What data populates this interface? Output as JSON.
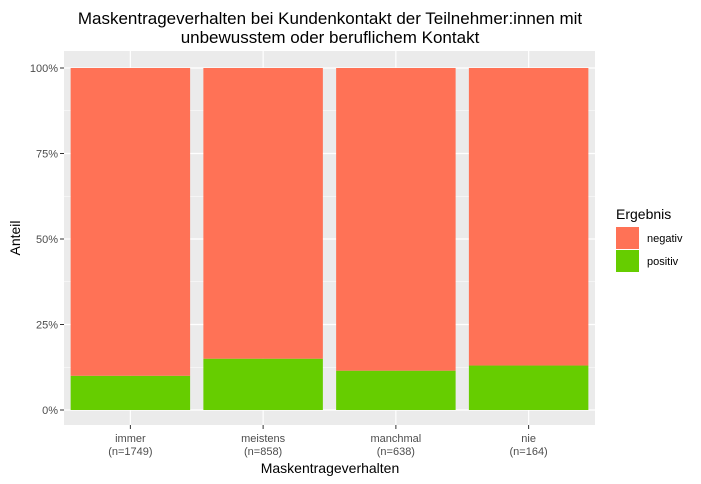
{
  "chart_data": {
    "type": "bar",
    "stacked": true,
    "title_lines": [
      "Maskentrageverhalten bei Kundenkontakt der Teilnehmer:innen mit",
      "unbewusstem oder beruflichem Kontakt"
    ],
    "xlabel": "Maskentrageverhalten",
    "ylabel": "Anteil",
    "categories": [
      "immer",
      "meistens",
      "manchmal",
      "nie"
    ],
    "category_counts": [
      "(n=1749)",
      "(n=858)",
      "(n=638)",
      "(n=164)"
    ],
    "ylim": [
      0,
      1
    ],
    "yticks": [
      0,
      0.25,
      0.5,
      0.75,
      1
    ],
    "ytick_labels": [
      "0%",
      "25%",
      "50%",
      "75%",
      "100%"
    ],
    "legend": {
      "title": "Ergebnis",
      "position": "right",
      "entries": [
        "negativ",
        "positiv"
      ]
    },
    "series": [
      {
        "name": "positiv",
        "color": "#66CD00",
        "values": [
          0.1,
          0.15,
          0.115,
          0.13
        ]
      },
      {
        "name": "negativ",
        "color": "#FF7256",
        "values": [
          0.9,
          0.85,
          0.885,
          0.87
        ]
      }
    ],
    "panel_background": "#EBEBEB",
    "grid": true
  }
}
